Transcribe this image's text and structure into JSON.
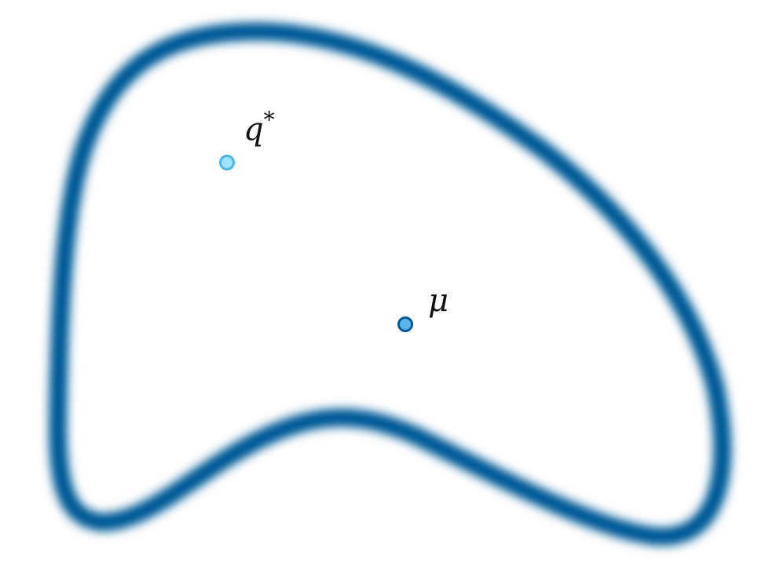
{
  "diagram": {
    "region_color": "#005a96",
    "points": {
      "q_star": {
        "symbol": "q",
        "superscript": "*",
        "fill": "#9fe3ff",
        "stroke": "#4cb4e6"
      },
      "mu": {
        "symbol": "μ",
        "fill": "#5ab4ee",
        "stroke": "#005a96"
      }
    }
  }
}
